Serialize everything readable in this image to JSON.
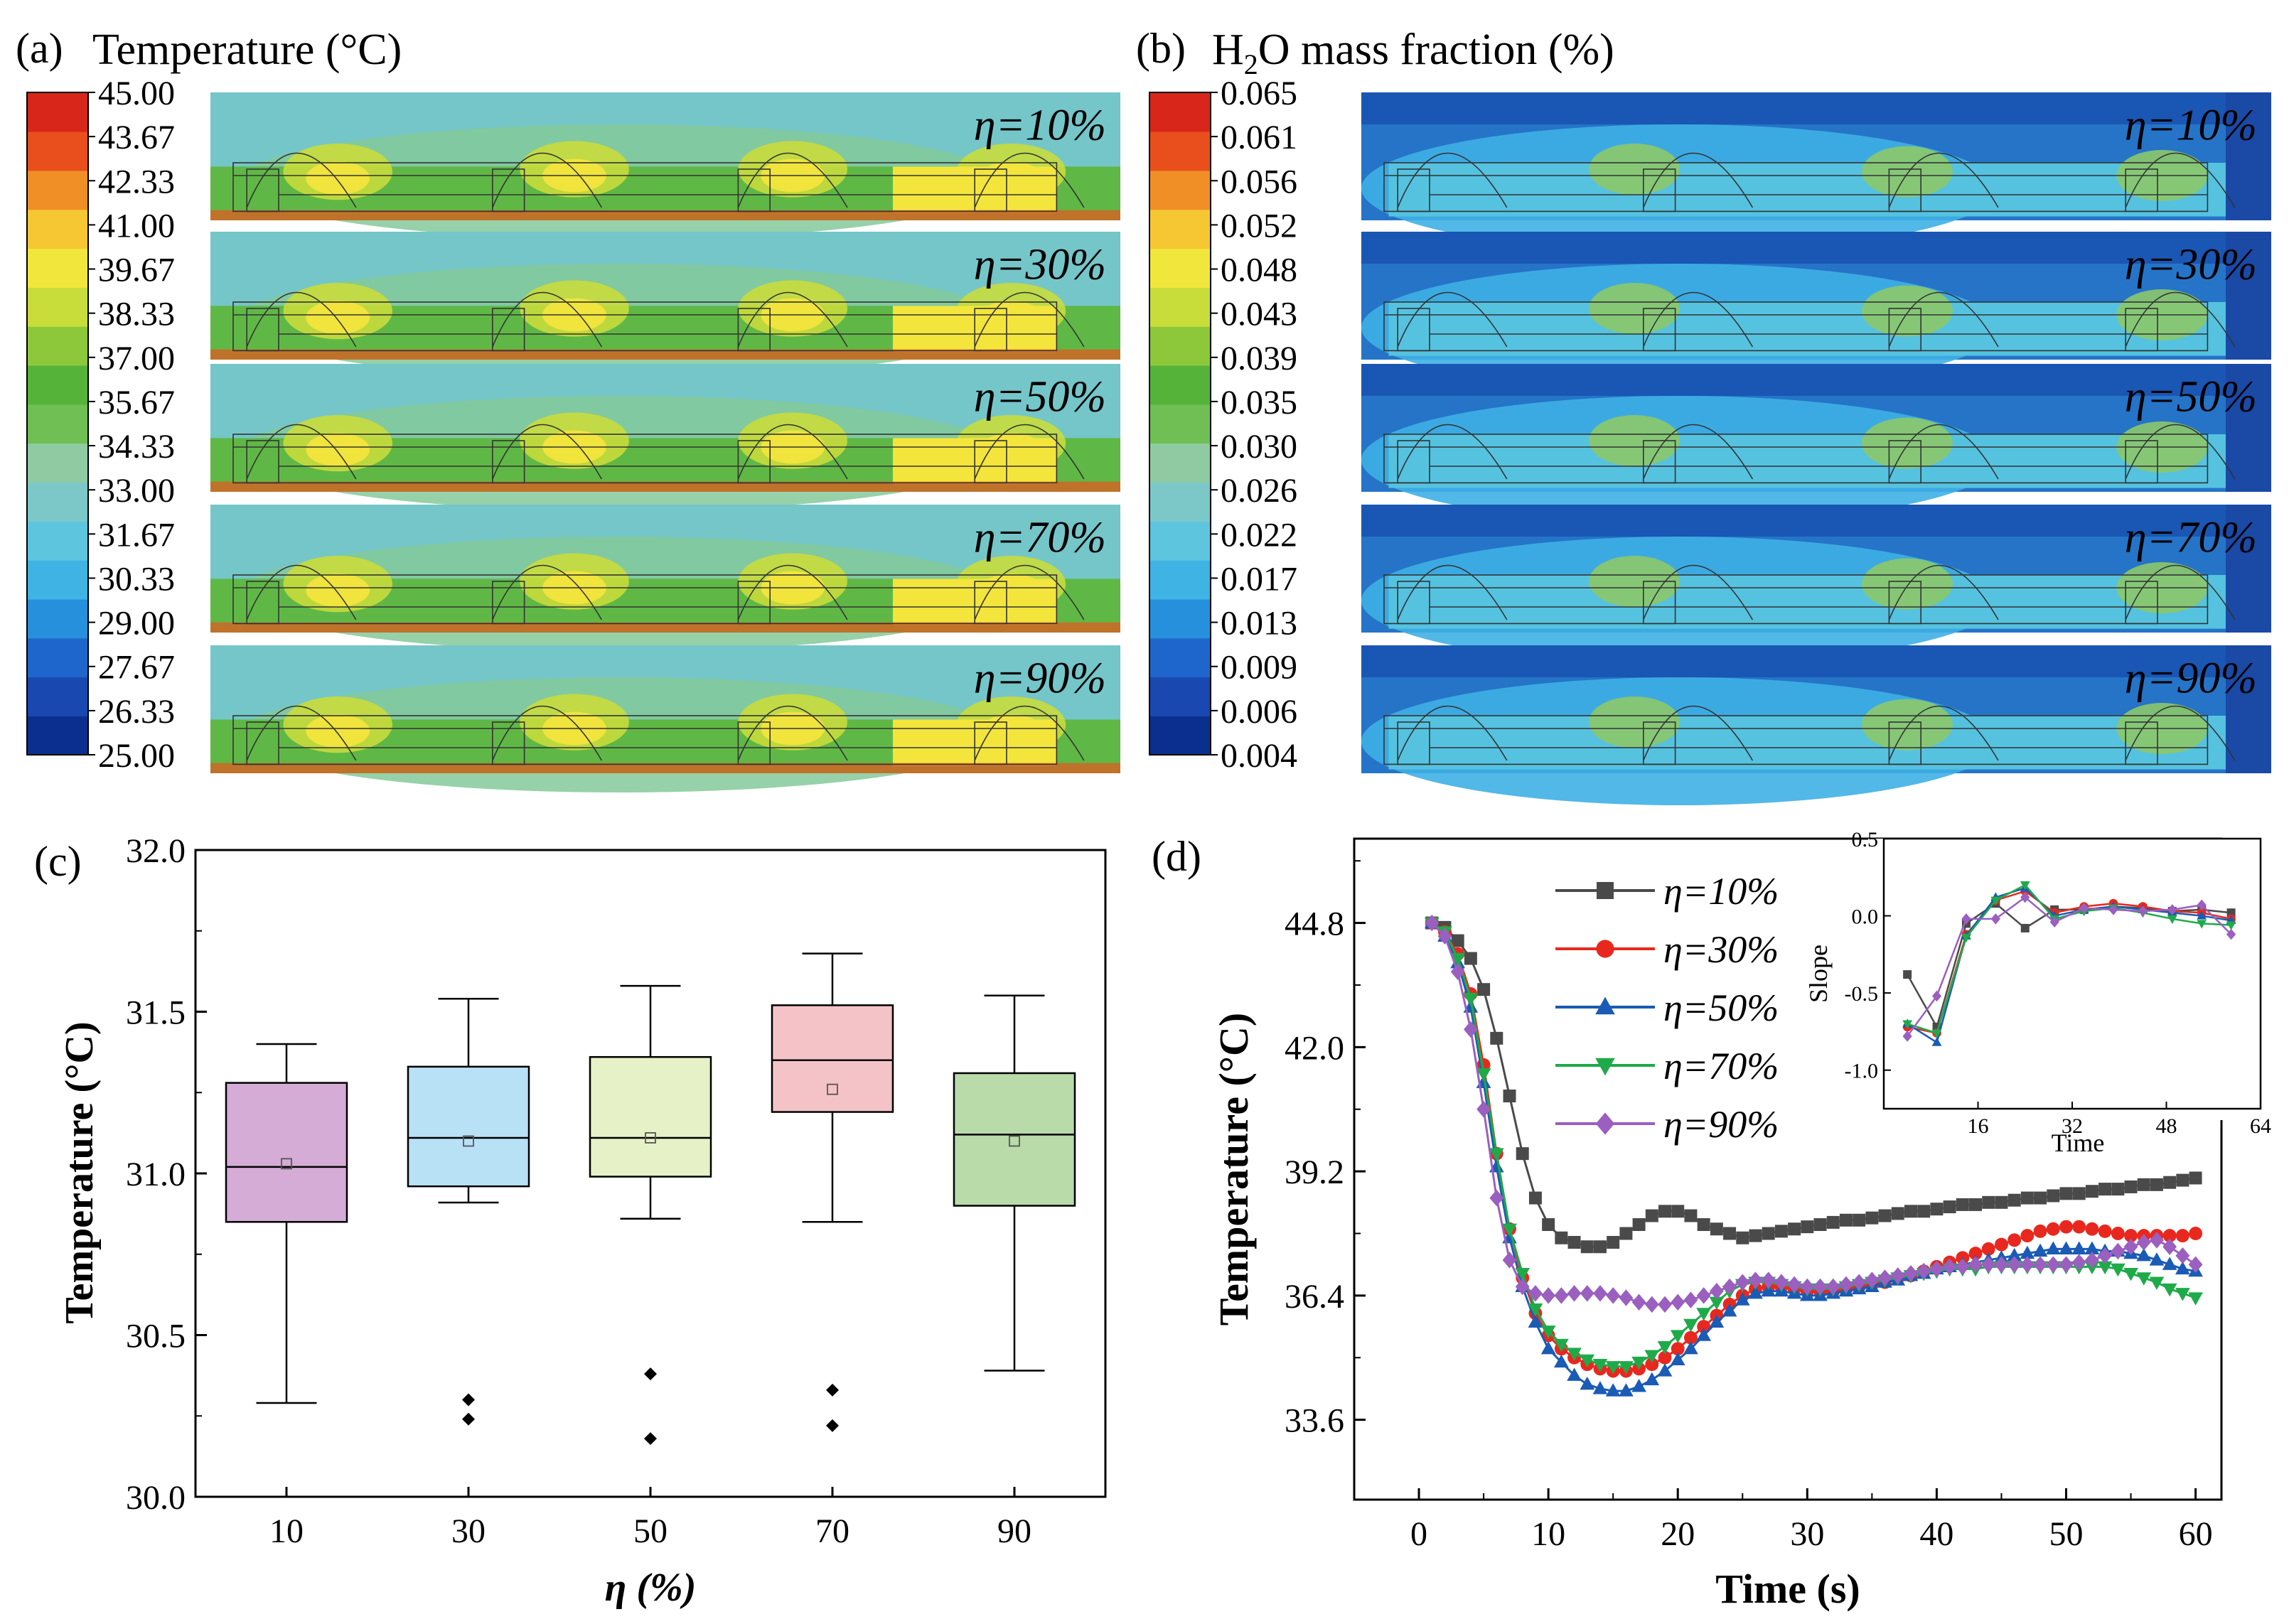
{
  "panels": {
    "a": {
      "letter": "(a)",
      "title": "Temperature (°C)",
      "colorbar_labels": [
        "45.00",
        "43.67",
        "42.33",
        "41.00",
        "39.67",
        "38.33",
        "37.00",
        "35.67",
        "34.33",
        "33.00",
        "31.67",
        "30.33",
        "29.00",
        "27.67",
        "26.33",
        "25.00"
      ],
      "contour_labels": [
        "η=10%",
        "η=30%",
        "η=50%",
        "η=70%",
        "η=90%"
      ]
    },
    "b": {
      "letter": "(b)",
      "title_main": "H",
      "title_sub": "2",
      "title_rest": "O mass fraction (%)",
      "colorbar_labels": [
        "0.065",
        "0.061",
        "0.056",
        "0.052",
        "0.048",
        "0.043",
        "0.039",
        "0.035",
        "0.030",
        "0.026",
        "0.022",
        "0.017",
        "0.013",
        "0.009",
        "0.006",
        "0.004"
      ],
      "contour_labels": [
        "η=10%",
        "η=30%",
        "η=50%",
        "η=70%",
        "η=90%"
      ]
    },
    "c": {
      "letter": "(c)"
    },
    "d": {
      "letter": "(d)"
    }
  },
  "colors": {
    "colormap": [
      "#0b2f8e",
      "#1848b0",
      "#1f66cc",
      "#2690dc",
      "#3fb3e3",
      "#5ec5de",
      "#7cc8c9",
      "#8fcaa3",
      "#6fbf55",
      "#56b33a",
      "#8cc83a",
      "#c9dd3a",
      "#f1e73c",
      "#f6c733",
      "#f08f25",
      "#e84f1d",
      "#d8261b"
    ],
    "series": [
      "#4a4a4a",
      "#e8281e",
      "#1a5bb5",
      "#1faa4a",
      "#9b5fc0"
    ]
  },
  "chart_data": [
    {
      "id": "c",
      "type": "box",
      "title": "",
      "xlabel": "η (%)",
      "ylabel": "Temperature (°C)",
      "categories": [
        "10",
        "30",
        "50",
        "70",
        "90"
      ],
      "ylim": [
        30.0,
        32.0
      ],
      "yticks": [
        "30.0",
        "30.5",
        "31.0",
        "31.5",
        "32.0"
      ],
      "box_colors": [
        "#d4acd6",
        "#b9e1f6",
        "#e6f1c7",
        "#f4c3c8",
        "#b8dba9"
      ],
      "boxes": [
        {
          "whisker_low": 30.29,
          "q1": 30.85,
          "median": 31.02,
          "q3": 31.28,
          "whisker_high": 31.4,
          "mean": 31.03,
          "outliers": []
        },
        {
          "whisker_low": 30.91,
          "q1": 30.96,
          "median": 31.11,
          "q3": 31.33,
          "whisker_high": 31.54,
          "mean": 31.1,
          "outliers": [
            30.3,
            30.24
          ]
        },
        {
          "whisker_low": 30.86,
          "q1": 30.99,
          "median": 31.11,
          "q3": 31.36,
          "whisker_high": 31.58,
          "mean": 31.11,
          "outliers": [
            30.38,
            30.18
          ]
        },
        {
          "whisker_low": 30.85,
          "q1": 31.19,
          "median": 31.35,
          "q3": 31.52,
          "whisker_high": 31.68,
          "mean": 31.26,
          "outliers": [
            30.33,
            30.22
          ]
        },
        {
          "whisker_low": 30.39,
          "q1": 30.9,
          "median": 31.12,
          "q3": 31.31,
          "whisker_high": 31.55,
          "mean": 31.1,
          "outliers": []
        }
      ]
    },
    {
      "id": "d",
      "type": "line",
      "title": "",
      "xlabel": "Time (s)",
      "ylabel": "Temperature (°C)",
      "xlim": [
        -5,
        62
      ],
      "ylim": [
        31.8,
        46.7
      ],
      "xticks": [
        "0",
        "10",
        "20",
        "30",
        "40",
        "50",
        "60"
      ],
      "yticks": [
        "33.6",
        "36.4",
        "39.2",
        "42.0",
        "44.8"
      ],
      "x": [
        1,
        2,
        3,
        4,
        5,
        6,
        7,
        8,
        9,
        10,
        11,
        12,
        13,
        14,
        15,
        16,
        17,
        18,
        19,
        20,
        21,
        22,
        23,
        24,
        25,
        26,
        27,
        28,
        29,
        30,
        31,
        32,
        33,
        34,
        35,
        36,
        37,
        38,
        39,
        40,
        41,
        42,
        43,
        44,
        45,
        46,
        47,
        48,
        49,
        50,
        51,
        52,
        53,
        54,
        55,
        56,
        57,
        58,
        59,
        60
      ],
      "series": [
        {
          "name": "η=10%",
          "marker": "square",
          "values": [
            44.8,
            44.7,
            44.4,
            44.0,
            43.3,
            42.2,
            40.9,
            39.6,
            38.6,
            38.0,
            37.7,
            37.6,
            37.5,
            37.5,
            37.6,
            37.8,
            38.0,
            38.2,
            38.3,
            38.3,
            38.2,
            38.0,
            37.9,
            37.8,
            37.7,
            37.75,
            37.8,
            37.85,
            37.9,
            37.95,
            38.0,
            38.05,
            38.1,
            38.1,
            38.15,
            38.2,
            38.25,
            38.3,
            38.3,
            38.35,
            38.4,
            38.45,
            38.45,
            38.5,
            38.5,
            38.55,
            38.6,
            38.6,
            38.65,
            38.7,
            38.7,
            38.75,
            38.8,
            38.8,
            38.85,
            38.9,
            38.9,
            38.95,
            39.0,
            39.05
          ]
        },
        {
          "name": "η=30%",
          "marker": "circle",
          "values": [
            44.8,
            44.6,
            44.1,
            43.2,
            41.6,
            39.6,
            37.9,
            36.8,
            36.0,
            35.5,
            35.2,
            35.0,
            34.85,
            34.75,
            34.7,
            34.7,
            34.75,
            34.85,
            35.0,
            35.2,
            35.45,
            35.7,
            35.95,
            36.2,
            36.4,
            36.55,
            36.6,
            36.6,
            36.55,
            36.5,
            36.5,
            36.5,
            36.55,
            36.6,
            36.65,
            36.7,
            36.8,
            36.85,
            36.95,
            37.05,
            37.15,
            37.25,
            37.35,
            37.45,
            37.55,
            37.65,
            37.75,
            37.85,
            37.9,
            37.95,
            37.95,
            37.9,
            37.85,
            37.8,
            37.75,
            37.75,
            37.75,
            37.75,
            37.75,
            37.8
          ]
        },
        {
          "name": "η=50%",
          "marker": "triangle-up",
          "values": [
            44.8,
            44.5,
            43.9,
            42.9,
            41.2,
            39.3,
            37.7,
            36.6,
            35.8,
            35.2,
            34.9,
            34.6,
            34.4,
            34.3,
            34.25,
            34.25,
            34.35,
            34.5,
            34.7,
            34.95,
            35.2,
            35.5,
            35.8,
            36.05,
            36.3,
            36.45,
            36.5,
            36.5,
            36.45,
            36.4,
            36.4,
            36.45,
            36.5,
            36.55,
            36.6,
            36.7,
            36.75,
            36.85,
            36.9,
            37.0,
            37.05,
            37.1,
            37.15,
            37.2,
            37.25,
            37.3,
            37.35,
            37.4,
            37.45,
            37.45,
            37.45,
            37.45,
            37.4,
            37.4,
            37.35,
            37.3,
            37.2,
            37.1,
            37.0,
            36.95
          ]
        },
        {
          "name": "η=70%",
          "marker": "triangle-down",
          "values": [
            44.8,
            44.6,
            44.0,
            43.1,
            41.4,
            39.6,
            37.9,
            36.9,
            36.1,
            35.6,
            35.3,
            35.1,
            34.95,
            34.85,
            34.8,
            34.8,
            34.9,
            35.05,
            35.25,
            35.5,
            35.75,
            36.0,
            36.25,
            36.5,
            36.65,
            36.7,
            36.7,
            36.65,
            36.6,
            36.55,
            36.55,
            36.55,
            36.6,
            36.65,
            36.7,
            36.75,
            36.8,
            36.85,
            36.9,
            36.95,
            37.0,
            37.0,
            37.0,
            37.05,
            37.05,
            37.05,
            37.05,
            37.05,
            37.05,
            37.05,
            37.05,
            37.05,
            37.05,
            37.0,
            36.9,
            36.8,
            36.7,
            36.55,
            36.45,
            36.35
          ]
        },
        {
          "name": "η=90%",
          "marker": "diamond",
          "values": [
            44.8,
            44.5,
            43.7,
            42.4,
            40.6,
            38.6,
            37.2,
            36.6,
            36.45,
            36.4,
            36.4,
            36.45,
            36.45,
            36.45,
            36.4,
            36.35,
            36.25,
            36.2,
            36.2,
            36.25,
            36.3,
            36.4,
            36.5,
            36.6,
            36.7,
            36.75,
            36.75,
            36.7,
            36.65,
            36.6,
            36.6,
            36.6,
            36.65,
            36.7,
            36.75,
            36.8,
            36.85,
            36.9,
            36.95,
            37.0,
            37.05,
            37.05,
            37.1,
            37.1,
            37.1,
            37.1,
            37.1,
            37.1,
            37.1,
            37.1,
            37.15,
            37.2,
            37.3,
            37.4,
            37.5,
            37.6,
            37.65,
            37.5,
            37.3,
            37.1
          ]
        }
      ],
      "legend_position": "top-left",
      "inset": {
        "type": "line",
        "xlabel": "Time",
        "ylabel": "Slope",
        "xlim": [
          0,
          64
        ],
        "ylim": [
          -1.25,
          0.5
        ],
        "xticks": [
          "16",
          "32",
          "48",
          "64"
        ],
        "yticks": [
          "0.5",
          "0.0",
          "-0.5",
          "-1.0"
        ],
        "x": [
          4,
          9,
          14,
          19,
          24,
          29,
          34,
          39,
          44,
          49,
          54,
          59
        ],
        "series": [
          {
            "name": "η=10%",
            "values": [
              -0.38,
              -0.72,
              -0.05,
              0.08,
              -0.08,
              0.04,
              0.04,
              0.06,
              0.05,
              0.03,
              0.04,
              0.02
            ]
          },
          {
            "name": "η=30%",
            "values": [
              -0.72,
              -0.76,
              -0.12,
              0.1,
              0.16,
              0.02,
              0.06,
              0.08,
              0.06,
              0.03,
              0.02,
              -0.02
            ]
          },
          {
            "name": "η=50%",
            "values": [
              -0.7,
              -0.82,
              -0.13,
              0.12,
              0.18,
              0.0,
              0.04,
              0.06,
              0.04,
              0.02,
              0.0,
              -0.03
            ]
          },
          {
            "name": "η=70%",
            "values": [
              -0.7,
              -0.76,
              -0.14,
              0.1,
              0.2,
              -0.02,
              0.03,
              0.05,
              0.02,
              -0.02,
              -0.05,
              -0.06
            ]
          },
          {
            "name": "η=90%",
            "values": [
              -0.78,
              -0.52,
              -0.02,
              -0.02,
              0.12,
              -0.04,
              0.05,
              0.04,
              0.03,
              0.04,
              0.07,
              -0.12
            ]
          }
        ]
      }
    }
  ]
}
